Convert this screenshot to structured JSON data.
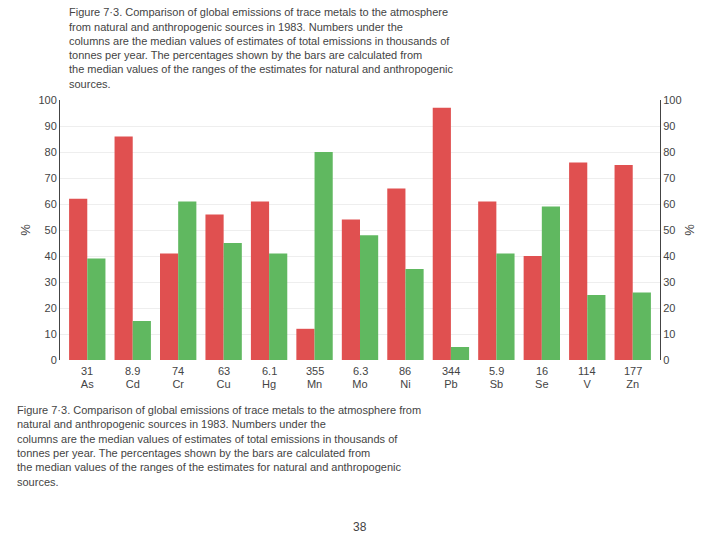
{
  "chart_data": {
    "type": "bar",
    "title": "Figure 7·3. Comparison of global emissions of trace metals to the atmosphere\nfrom natural and anthropogenic sources in 1983. Numbers under the\ncolumns are the median values of estimates of total emissions in thousands of\ntonnes per year. The percentages shown by the bars are calculated from\nthe median values of the ranges of the estimates for natural and anthropogenic\nsources.",
    "categories": [
      "As",
      "Cd",
      "Cr",
      "Cu",
      "Hg",
      "Mn",
      "Mo",
      "Ni",
      "Pb",
      "Sb",
      "Se",
      "V",
      "Zn"
    ],
    "series": [
      {
        "color": "#e05050",
        "values": [
          62,
          86,
          41,
          56,
          61,
          12,
          54,
          66,
          97,
          61,
          40,
          76,
          75
        ]
      },
      {
        "color": "#60b860",
        "values": [
          39,
          15,
          61,
          45,
          41,
          80,
          48,
          35,
          5,
          41,
          59,
          25,
          26
        ]
      }
    ],
    "ylabel": "%",
    "y2label": "%",
    "ylim": [
      0,
      100
    ],
    "yticks": [
      0,
      10,
      20,
      30,
      40,
      50,
      60,
      70,
      80,
      90,
      100
    ],
    "y2lim": [
      0,
      100
    ],
    "y2ticks": [
      0,
      10,
      20,
      30,
      40,
      50,
      60,
      70,
      80,
      90,
      100
    ],
    "grid": true,
    "annotations": [
      {
        "x": "As",
        "text": "31"
      },
      {
        "x": "Cd",
        "text": "8.9"
      },
      {
        "x": "Cr",
        "text": "74"
      },
      {
        "x": "Cu",
        "text": "63"
      },
      {
        "x": "Hg",
        "text": "6.1"
      },
      {
        "x": "Mn",
        "text": "355"
      },
      {
        "x": "Mo",
        "text": "6.3"
      },
      {
        "x": "Ni",
        "text": "86"
      },
      {
        "x": "Pb",
        "text": "344"
      },
      {
        "x": "Sb",
        "text": "5.9"
      },
      {
        "x": "Se",
        "text": "16"
      },
      {
        "x": "V",
        "text": "114"
      },
      {
        "x": "Zn",
        "text": "177"
      },
      {
        "text": "Figure 7·3. Comparison of global emissions of trace metals to the atmosphere from\nnatural and anthropogenic sources in 1983. Numbers under the\ncolumns are the median values of estimates of total emissions in thousands of\ntonnes per year. The percentages shown by the bars are calculated from\nthe median values of the ranges of the estimates for natural and anthropogenic\nsources."
      },
      {
        "text": "38"
      }
    ]
  }
}
